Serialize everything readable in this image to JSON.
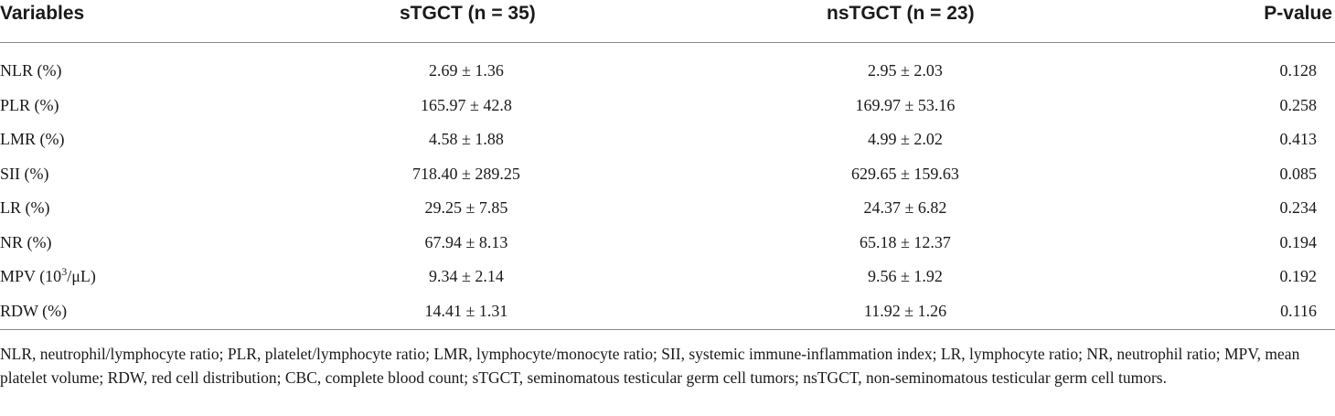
{
  "table": {
    "headers": {
      "variables": "Variables",
      "stgct": "sTGCT (n = 35)",
      "nstgct": "nsTGCT (n = 23)",
      "pvalue": "P-value"
    },
    "rows": [
      {
        "variable": "NLR (%)",
        "stgct": "2.69 ± 1.36",
        "nstgct": "2.95 ± 2.03",
        "pvalue": "0.128"
      },
      {
        "variable": "PLR (%)",
        "stgct": "165.97 ± 42.8",
        "nstgct": "169.97 ± 53.16",
        "pvalue": "0.258"
      },
      {
        "variable": "LMR (%)",
        "stgct": "4.58 ± 1.88",
        "nstgct": "4.99 ± 2.02",
        "pvalue": "0.413"
      },
      {
        "variable": "SII (%)",
        "stgct": "718.40 ± 289.25",
        "nstgct": "629.65 ± 159.63",
        "pvalue": "0.085"
      },
      {
        "variable": "LR (%)",
        "stgct": "29.25 ± 7.85",
        "nstgct": "24.37 ± 6.82",
        "pvalue": "0.234"
      },
      {
        "variable": "NR (%)",
        "stgct": "67.94 ± 8.13",
        "nstgct": "65.18 ± 12.37",
        "pvalue": "0.194"
      },
      {
        "variable_prefix": "MPV (10",
        "variable_sup": "3",
        "variable_suffix": "/μL)",
        "stgct": "9.34 ± 2.14",
        "nstgct": "9.56 ± 1.92",
        "pvalue": "0.192"
      },
      {
        "variable": "RDW (%)",
        "stgct": "14.41 ± 1.31",
        "nstgct": "11.92 ± 1.26",
        "pvalue": "0.116"
      }
    ]
  },
  "footnote": "NLR, neutrophil/lymphocyte ratio; PLR, platelet/lymphocyte ratio; LMR, lymphocyte/monocyte ratio; SII, systemic immune-inflammation index; LR, lymphocyte ratio; NR, neutrophil ratio; MPV, mean platelet volume; RDW, red cell distribution; CBC, complete blood count; sTGCT, seminomatous testicular germ cell tumors; nsTGCT, non-seminomatous testicular germ cell tumors."
}
